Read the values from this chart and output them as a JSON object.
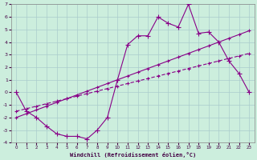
{
  "xlabel": "Windchill (Refroidissement éolien,°C)",
  "bg_color": "#cceedd",
  "grid_color": "#aacccc",
  "line_color": "#880088",
  "xlim": [
    -0.5,
    23.5
  ],
  "ylim": [
    -4,
    7
  ],
  "xticks": [
    0,
    1,
    2,
    3,
    4,
    5,
    6,
    7,
    8,
    9,
    10,
    11,
    12,
    13,
    14,
    15,
    16,
    17,
    18,
    19,
    20,
    21,
    22,
    23
  ],
  "yticks": [
    -4,
    -3,
    -2,
    -1,
    0,
    1,
    2,
    3,
    4,
    5,
    6,
    7
  ],
  "line1_x": [
    0,
    1,
    2,
    3,
    4,
    5,
    6,
    7,
    8,
    9,
    10,
    11,
    12,
    13,
    14,
    15,
    16,
    17,
    18,
    19,
    20,
    21,
    22,
    23
  ],
  "line1_y": [
    0,
    -1.5,
    -2,
    -2.7,
    -3.3,
    -3.5,
    -3.5,
    -3.7,
    -3.0,
    -2.0,
    1.0,
    3.8,
    4.5,
    4.5,
    6.0,
    5.5,
    5.2,
    7.0,
    4.7,
    4.8,
    4.0,
    2.5,
    1.5,
    0.0
  ],
  "line2_x": [
    0,
    1,
    2,
    3,
    4,
    5,
    6,
    7,
    8,
    9,
    10,
    11,
    12,
    13,
    14,
    15,
    16,
    17,
    18,
    19,
    20,
    21,
    22,
    23
  ],
  "line2_y": [
    -2.0,
    -1.7,
    -1.4,
    -1.1,
    -0.8,
    -0.5,
    -0.2,
    0.1,
    0.4,
    0.7,
    1.0,
    1.3,
    1.6,
    1.9,
    2.2,
    2.5,
    2.8,
    3.1,
    3.4,
    3.7,
    4.0,
    4.3,
    4.6,
    4.9
  ],
  "line3_x": [
    0,
    1,
    2,
    3,
    4,
    5,
    6,
    7,
    8,
    9,
    10,
    11,
    12,
    13,
    14,
    15,
    16,
    17,
    18,
    19,
    20,
    21,
    22,
    23
  ],
  "line3_y": [
    -1.5,
    -1.3,
    -1.1,
    -0.9,
    -0.7,
    -0.5,
    -0.3,
    -0.1,
    0.1,
    0.3,
    0.5,
    0.7,
    0.9,
    1.1,
    1.3,
    1.5,
    1.7,
    1.9,
    2.1,
    2.3,
    2.5,
    2.7,
    2.9,
    3.1
  ]
}
